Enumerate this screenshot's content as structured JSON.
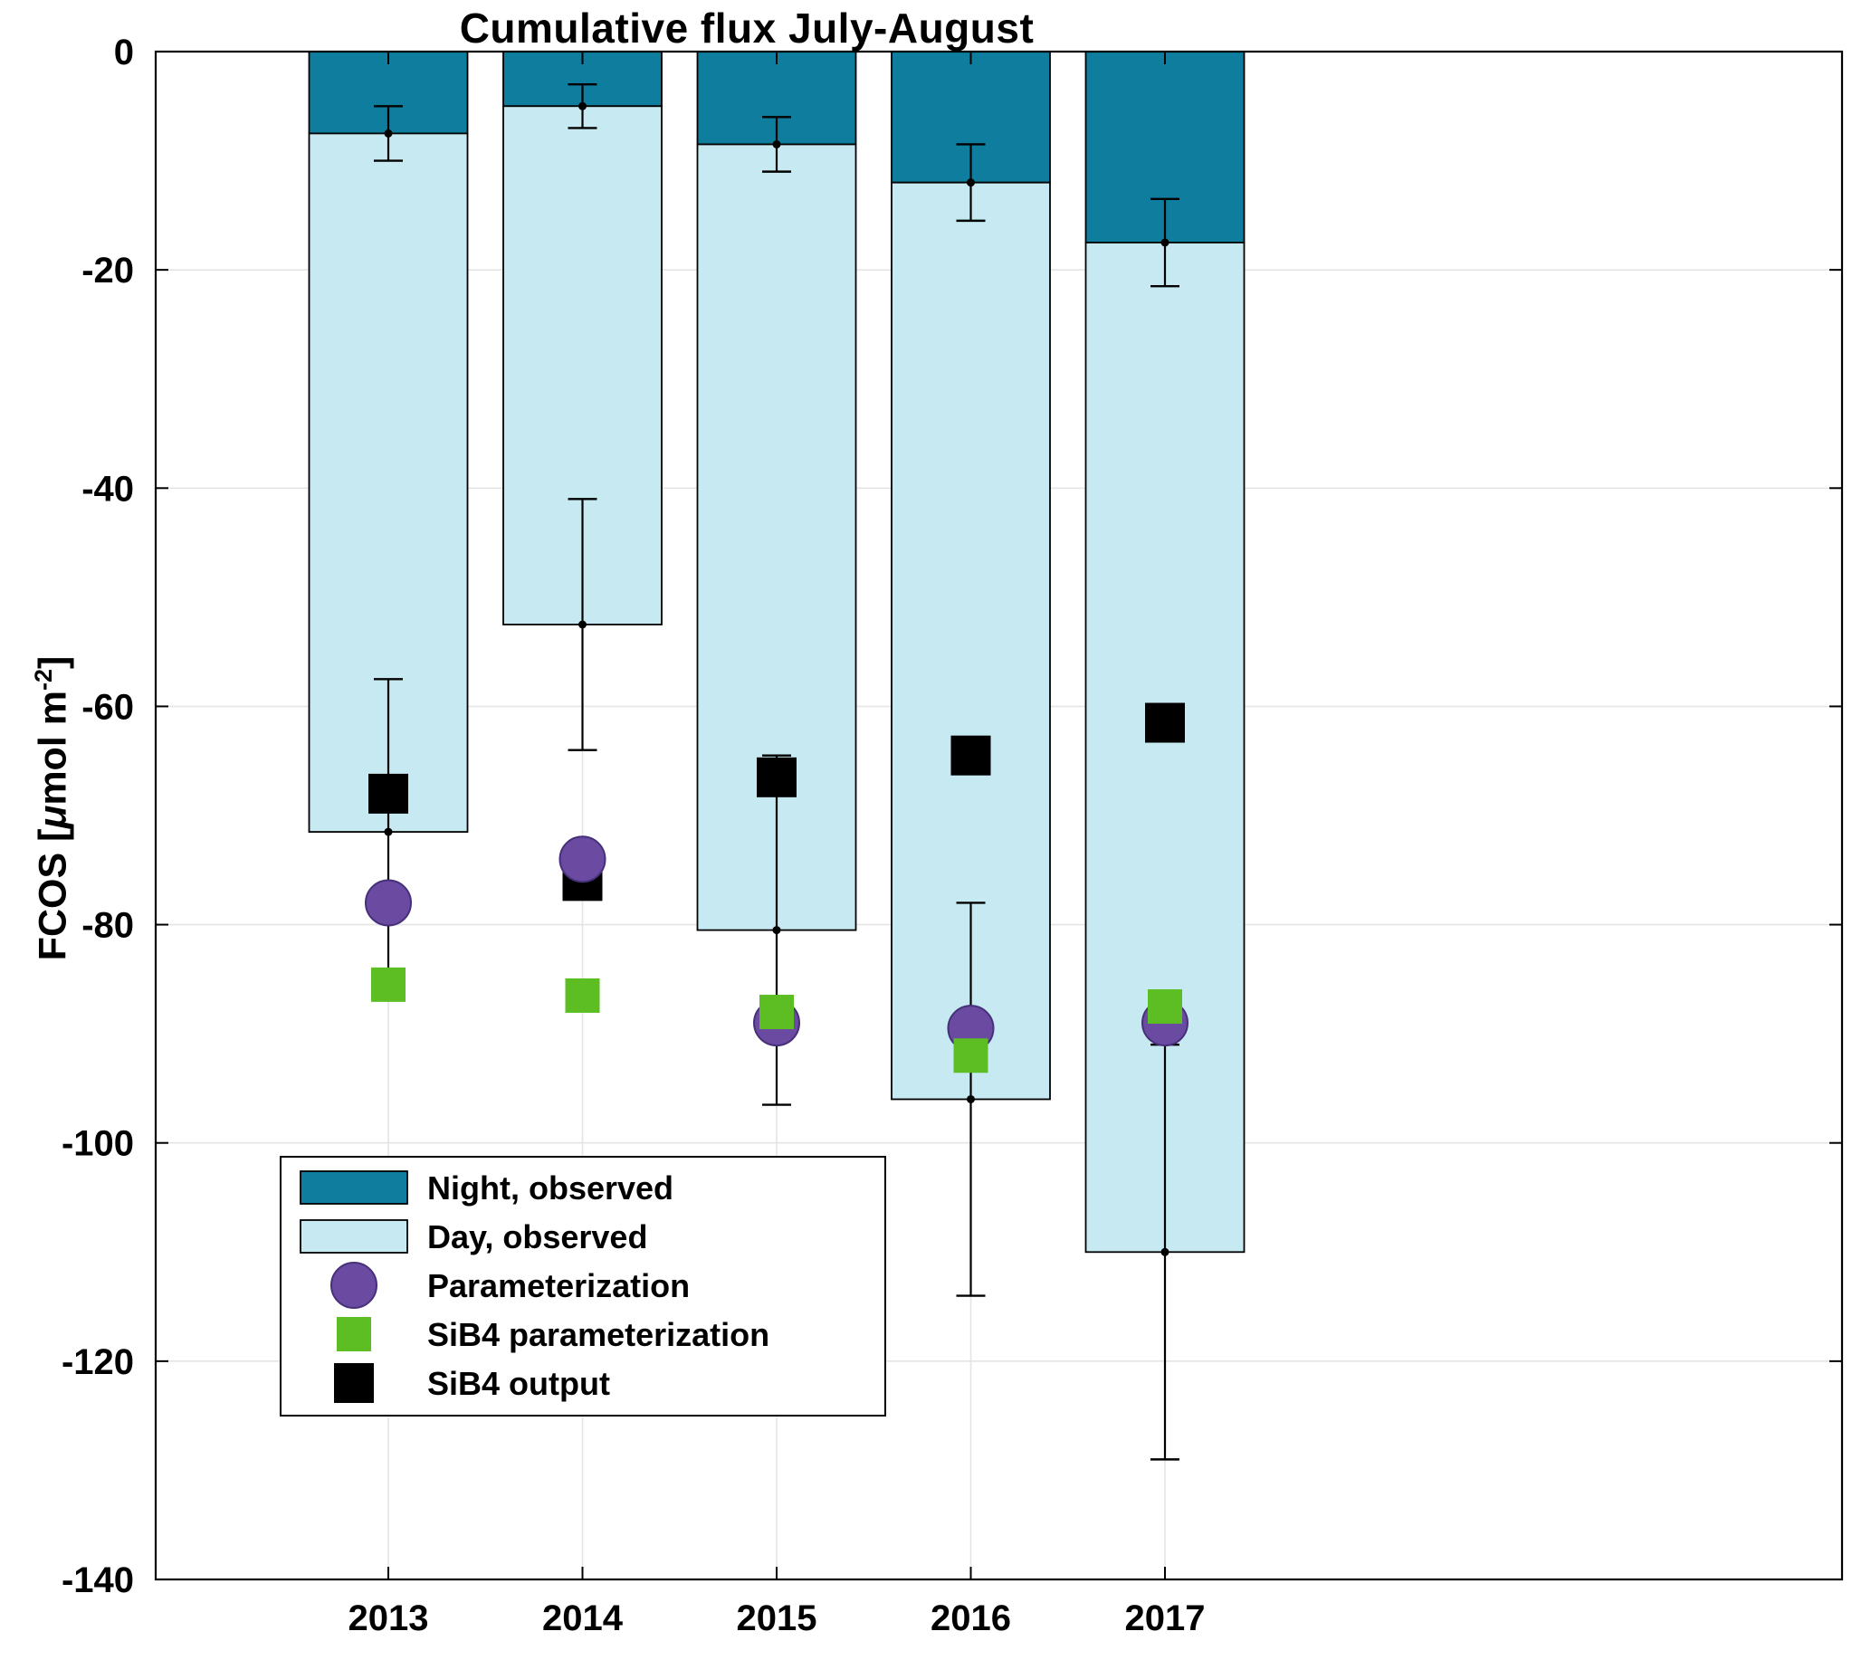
{
  "chart_data": {
    "type": "bar",
    "title": "Cumulative flux July-August",
    "ylabel_parts": {
      "pre": "FCOS [",
      "mu": "μ",
      "mid": "mol m",
      "sup": "-2",
      "post": "]"
    },
    "x_categories": [
      "2013",
      "2014",
      "2015",
      "2016",
      "2017"
    ],
    "ylim": [
      -140,
      0
    ],
    "yticks": [
      0,
      -20,
      -40,
      -60,
      -80,
      -100,
      -120,
      -140
    ],
    "grid": true,
    "legend_position": "bottom-left",
    "colors": {
      "night": "#0f7d9d",
      "day": "#c7eaf2",
      "parameterization": "#6b4aa2",
      "sib4_parameterization": "#5cbe22",
      "sib4_output": "#000000",
      "grid": "#e4e4e4"
    },
    "bars": {
      "night": {
        "label": "Night, observed",
        "color": "#0f7d9d",
        "values": [
          -7.5,
          -5,
          -8.5,
          -12,
          -17.5
        ],
        "errors": [
          2.5,
          2,
          2.5,
          3.5,
          4
        ]
      },
      "day": {
        "label": "Day, observed",
        "color": "#c7eaf2",
        "total_values": [
          -71.5,
          -52.5,
          -80.5,
          -96,
          -110
        ],
        "errors": [
          14,
          11.5,
          16,
          18,
          19
        ]
      }
    },
    "markers": [
      {
        "label": "Parameterization",
        "shape": "circle",
        "color": "#6b4aa2",
        "size": 50,
        "values": [
          -78,
          -74,
          -89,
          -89.5,
          -89
        ]
      },
      {
        "label": "SiB4 parameterization",
        "shape": "square",
        "color": "#5cbe22",
        "size": 38,
        "values": [
          -85.5,
          -86.5,
          -88,
          -92,
          -87.5
        ]
      },
      {
        "label": "SiB4 output",
        "shape": "square",
        "color": "#000000",
        "size": 44,
        "values": [
          -68,
          -76,
          -66.5,
          -64.5,
          -61.5
        ]
      }
    ],
    "marker_draw_order": [
      2,
      0,
      1
    ],
    "legend": [
      "Night, observed",
      "Day, observed",
      "Parameterization",
      "SiB4 parameterization",
      "SiB4 output"
    ]
  }
}
